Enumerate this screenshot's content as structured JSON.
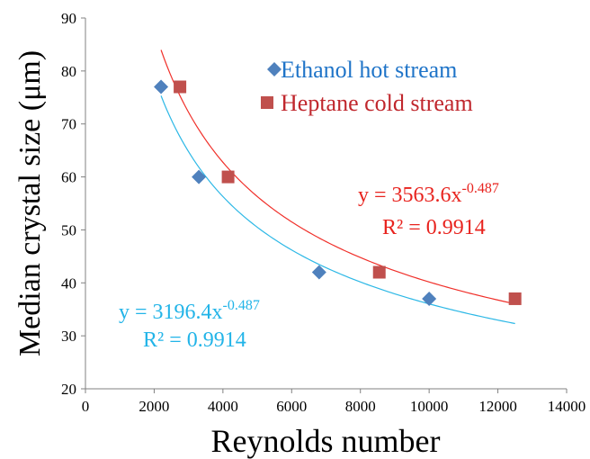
{
  "chart_data": {
    "type": "scatter",
    "xlabel": "Reynolds number",
    "ylabel": "Median crystal size (μm)",
    "xlim": [
      0,
      14000
    ],
    "ylim": [
      20,
      90
    ],
    "x_ticks": [
      0,
      2000,
      4000,
      6000,
      8000,
      10000,
      12000,
      14000
    ],
    "y_ticks": [
      20,
      30,
      40,
      50,
      60,
      70,
      80,
      90
    ],
    "grid": false,
    "legend_position": "top-right",
    "series": [
      {
        "name": "Ethanol hot stream",
        "marker": "diamond",
        "color": "#4F81BD",
        "trend_color": "#2DB8E6",
        "x": [
          2200,
          3300,
          6800,
          10000
        ],
        "y": [
          77,
          60,
          42,
          37
        ],
        "trendline": {
          "a": 3196.4,
          "b": -0.487,
          "x_range": [
            2200,
            12500
          ],
          "equation_base": "y = 3196.4x",
          "equation_exp": "-0.487",
          "r2": "R² = 0.9914"
        }
      },
      {
        "name": "Heptane cold stream",
        "marker": "square",
        "color": "#C0504D",
        "trend_color": "#F0302A",
        "x": [
          2750,
          4150,
          8550,
          12500
        ],
        "y": [
          77,
          60,
          42,
          37
        ],
        "trendline": {
          "a": 3563.6,
          "b": -0.487,
          "x_range": [
            2200,
            12500
          ],
          "equation_base": "y = 3563.6x",
          "equation_exp": "-0.487",
          "r2": "R² = 0.9914"
        }
      }
    ]
  }
}
